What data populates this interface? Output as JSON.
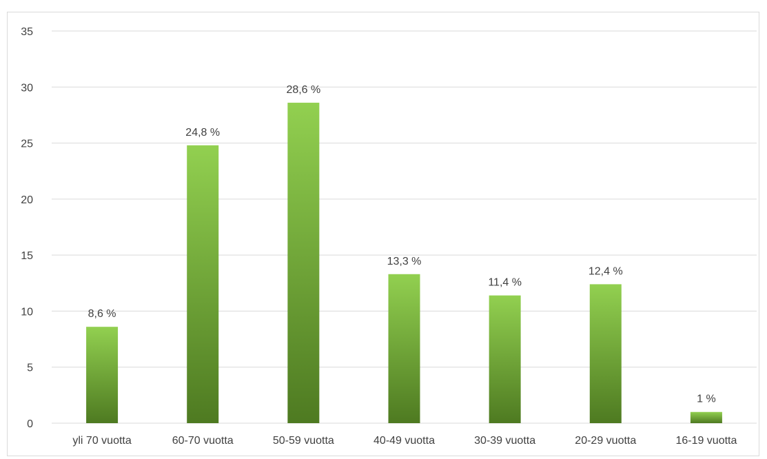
{
  "chart_data": {
    "type": "bar",
    "title": "",
    "xlabel": "",
    "ylabel": "",
    "categories": [
      "yli 70 vuotta",
      "60-70 vuotta",
      "50-59 vuotta",
      "40-49 vuotta",
      "30-39 vuotta",
      "20-29 vuotta",
      "16-19 vuotta"
    ],
    "values": [
      8.6,
      24.8,
      28.6,
      13.3,
      11.4,
      12.4,
      1
    ],
    "data_labels": [
      "8,6 %",
      "24,8 %",
      "28,6 %",
      "13,3 %",
      "11,4 %",
      "12,4 %",
      "1 %"
    ],
    "ylim": [
      0,
      35
    ],
    "yticks": [
      0,
      5,
      10,
      15,
      20,
      25,
      30,
      35
    ],
    "grid": true,
    "legend": "none",
    "colors": {
      "bar_top": "#92d050",
      "bar_bottom": "#4e7a21",
      "grid": "#d9d9d9",
      "text": "#404040",
      "border": "#d9d9d9"
    }
  }
}
